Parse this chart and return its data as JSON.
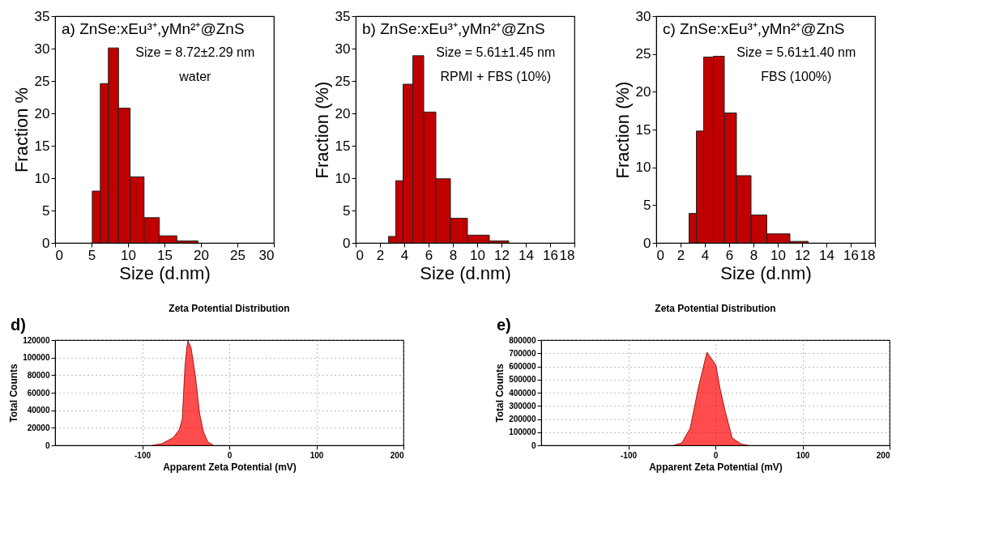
{
  "chart_data": [
    {
      "type": "histogram",
      "xlabel": "Size (d.nm)",
      "ylabel": "Fraction %",
      "annotations": [
        "a) ZnSe:xEu³⁺,yMn²⁺@ZnS",
        "Size = 8.72±2.29 nm",
        "water"
      ],
      "bins": [
        5.1,
        6.2,
        7.3,
        8.7,
        10.3,
        12.2,
        14.3,
        16.7,
        19.6
      ],
      "values": [
        8.0,
        24.6,
        30.1,
        20.8,
        10.2,
        3.9,
        1.1,
        0.3
      ],
      "color": "#c00000",
      "xlim": [
        0,
        30
      ],
      "xticks": [
        0,
        5,
        10,
        15,
        20,
        25,
        30
      ],
      "ylim": [
        0,
        35
      ],
      "yticks": [
        0,
        5,
        10,
        15,
        20,
        25,
        30,
        35
      ],
      "grid": false
    },
    {
      "type": "histogram",
      "xlabel": "Size (d.nm)",
      "ylabel": "Fraction (%)",
      "annotations": [
        "b) ZnSe:xEu³⁺,yMn²⁺@ZnS",
        "Size = 5.61±1.45 nm",
        "RPMI + FBS (10%)"
      ],
      "bins": [
        2.7,
        3.3,
        3.9,
        4.7,
        5.6,
        6.6,
        7.8,
        9.2,
        11.0,
        12.6
      ],
      "values": [
        1.0,
        9.6,
        24.5,
        28.9,
        20.2,
        9.9,
        3.8,
        1.2,
        0.3
      ],
      "color": "#c00000",
      "xlim": [
        0,
        18
      ],
      "xticks": [
        0,
        2,
        4,
        6,
        8,
        10,
        12,
        14,
        16,
        18
      ],
      "ylim": [
        0,
        35
      ],
      "yticks": [
        0,
        5,
        10,
        15,
        20,
        25,
        30,
        35
      ],
      "grid": false
    },
    {
      "type": "histogram",
      "xlabel": "Size (d.nm)",
      "ylabel": "Fraction (%)",
      "annotations": [
        "c) ZnSe:xEu³⁺,yMn²⁺@ZnS",
        "Size = 5.61±1.40 nm",
        "FBS (100%)"
      ],
      "bins": [
        2.7,
        3.3,
        3.9,
        4.7,
        5.6,
        6.6,
        7.8,
        9.1,
        11.0,
        12.5
      ],
      "values": [
        3.9,
        14.8,
        24.6,
        24.7,
        17.2,
        8.9,
        3.7,
        1.2,
        0.2
      ],
      "color": "#c00000",
      "xlim": [
        0,
        18
      ],
      "xticks": [
        0,
        2,
        4,
        6,
        8,
        10,
        12,
        14,
        16,
        18
      ],
      "ylim": [
        0,
        30
      ],
      "yticks": [
        0,
        5,
        10,
        15,
        20,
        25,
        30
      ],
      "grid": false
    },
    {
      "type": "area",
      "title": "Zeta Potential Distribution",
      "xlabel": "Apparent Zeta Potential (mV)",
      "ylabel": "Total Counts",
      "annotations": [
        "d)"
      ],
      "x": [
        -88.5,
        -77,
        -64,
        -57.4,
        -54,
        -51,
        -49,
        -47.5,
        -44,
        -39,
        -34,
        -29.5,
        -24.6,
        -18
      ],
      "values": [
        0,
        2000,
        9000,
        18000,
        30000,
        88000,
        110000,
        119000,
        112000,
        80000,
        36000,
        15000,
        4000,
        0
      ],
      "color": "#ff0000",
      "xlim": [
        -200,
        200
      ],
      "xticks": [
        -100,
        0,
        100,
        200
      ],
      "ylim": [
        0,
        120000
      ],
      "yticks": [
        0,
        20000,
        40000,
        60000,
        80000,
        100000,
        120000
      ],
      "grid": true
    },
    {
      "type": "area",
      "title": "Zeta Potential Distribution",
      "xlabel": "Apparent Zeta Potential (mV)",
      "ylabel": "Total Counts",
      "annotations": [
        "e)"
      ],
      "x": [
        -48,
        -38.6,
        -29,
        -19.7,
        -9.7,
        0.6,
        5.3,
        11.6,
        19.4,
        30,
        38
      ],
      "values": [
        0,
        18000,
        129000,
        434000,
        708000,
        610000,
        434000,
        250000,
        55000,
        9000,
        0
      ],
      "color": "#ff0000",
      "xlim": [
        -200,
        200
      ],
      "xticks": [
        -100,
        0,
        100,
        200
      ],
      "ylim": [
        0,
        800000
      ],
      "yticks": [
        0,
        100000,
        200000,
        300000,
        400000,
        500000,
        600000,
        700000,
        800000
      ],
      "grid": true
    }
  ]
}
